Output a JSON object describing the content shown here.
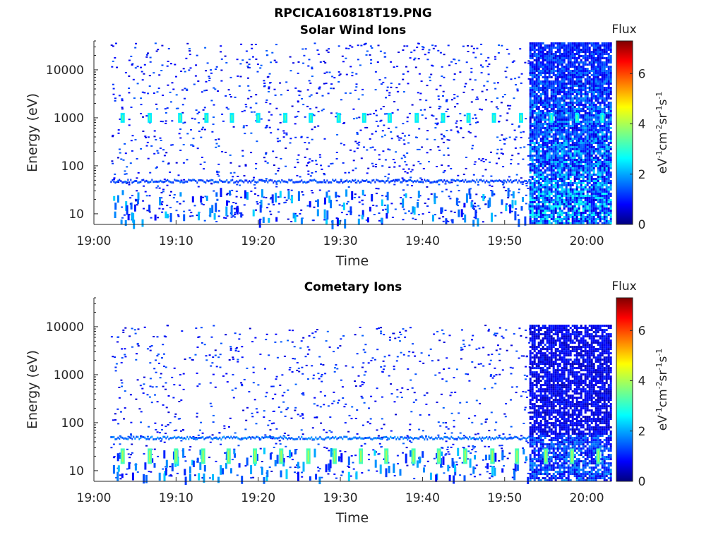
{
  "figure": {
    "title": "RPCICA160818T19.PNG"
  },
  "colors": {
    "axis": "#262626",
    "background": "#ffffff",
    "colormap": [
      "#00007f",
      "#0000ff",
      "#007fff",
      "#00ffff",
      "#7fff7f",
      "#ffff00",
      "#ff7f00",
      "#ff0000",
      "#7f0000"
    ]
  },
  "chart_data": [
    {
      "type": "heatmap",
      "title": "Solar Wind Ions",
      "xlabel": "Time",
      "ylabel": "Energy (eV)",
      "x_ticks": [
        "19:00",
        "19:10",
        "19:20",
        "19:30",
        "19:40",
        "19:50",
        "20:00"
      ],
      "xlim": [
        "19:00",
        "20:03"
      ],
      "y_scale": "log",
      "y_ticks": [
        "10",
        "100",
        "1000",
        "10000"
      ],
      "ylim": [
        6,
        40000
      ],
      "colorbar": {
        "label_top": "Flux",
        "unit": "eV-1cm-2sr-1s-1",
        "ticks": [
          "0",
          "2",
          "4",
          "6"
        ],
        "range": [
          0,
          7.3
        ]
      },
      "regions": [
        {
          "t_start": "19:02",
          "t_end": "19:53",
          "character": "sparse",
          "typical_flux": [
            0.5,
            1.5
          ]
        },
        {
          "t_start": "19:53",
          "t_end": "20:03",
          "character": "dense",
          "typical_flux": [
            0.5,
            3
          ]
        }
      ],
      "persistent_band": {
        "energy_eV": 50,
        "flux": 1.3
      },
      "low_energy_streaks_eV": [
        7,
        25
      ],
      "periodic_peaks": {
        "energy_eV": 1000,
        "flux": 2.5,
        "times": [
          "19:03.5",
          "19:06.8",
          "19:10.5",
          "19:13.7",
          "19:16.8",
          "19:20",
          "19:23.3",
          "19:26.4",
          "19:29.8",
          "19:32.9",
          "19:36",
          "19:39.3",
          "19:42.5",
          "19:45.6",
          "19:48.7",
          "19:52",
          "19:55.7",
          "19:58.8",
          "20:01.9"
        ]
      }
    },
    {
      "type": "heatmap",
      "title": "Cometary Ions",
      "xlabel": "Time",
      "ylabel": "Energy (eV)",
      "x_ticks": [
        "19:00",
        "19:10",
        "19:20",
        "19:30",
        "19:40",
        "19:50",
        "20:00"
      ],
      "xlim": [
        "19:00",
        "20:03"
      ],
      "y_scale": "log",
      "y_ticks": [
        "10",
        "100",
        "1000",
        "10000"
      ],
      "ylim": [
        6,
        40000
      ],
      "colorbar": {
        "label_top": "Flux",
        "unit": "eV-1cm-2sr-1s-1",
        "ticks": [
          "0",
          "2",
          "4",
          "6"
        ],
        "range": [
          0,
          7.3
        ]
      },
      "regions": [
        {
          "t_start": "19:02",
          "t_end": "19:53",
          "character": "sparse",
          "typical_flux": [
            0.5,
            1.5
          ]
        },
        {
          "t_start": "19:53",
          "t_end": "20:03",
          "character": "dense",
          "typical_flux": [
            0.5,
            2
          ]
        }
      ],
      "persistent_band": {
        "energy_eV": 50,
        "flux": 1.6
      },
      "low_energy_peaks": {
        "energy_eV": 20,
        "flux": 3.2,
        "times": [
          "19:03.5",
          "19:06.8",
          "19:10",
          "19:13.3",
          "19:16.4",
          "19:19.6",
          "19:22.8",
          "19:26.1",
          "19:29.3",
          "19:32.5",
          "19:35.6",
          "19:38.9",
          "19:42",
          "19:45.2",
          "19:48.5",
          "19:51.5",
          "19:55",
          "19:58.2",
          "20:01.4"
        ]
      }
    }
  ]
}
